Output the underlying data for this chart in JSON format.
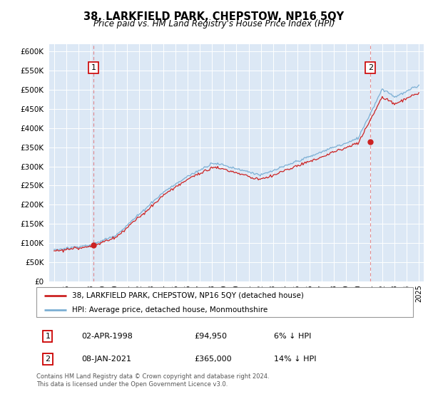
{
  "title": "38, LARKFIELD PARK, CHEPSTOW, NP16 5QY",
  "subtitle": "Price paid vs. HM Land Registry's House Price Index (HPI)",
  "legend_line1": "38, LARKFIELD PARK, CHEPSTOW, NP16 5QY (detached house)",
  "legend_line2": "HPI: Average price, detached house, Monmouthshire",
  "annotation1_date": "02-APR-1998",
  "annotation1_price": "£94,950",
  "annotation1_note": "6% ↓ HPI",
  "annotation2_date": "08-JAN-2021",
  "annotation2_price": "£365,000",
  "annotation2_note": "14% ↓ HPI",
  "footer": "Contains HM Land Registry data © Crown copyright and database right 2024.\nThis data is licensed under the Open Government Licence v3.0.",
  "hpi_color": "#7bafd4",
  "price_color": "#cc2222",
  "vline_color": "#dd4444",
  "bg_color": "#dce8f5",
  "ylim": [
    0,
    620000
  ],
  "yticks": [
    0,
    50000,
    100000,
    150000,
    200000,
    250000,
    300000,
    350000,
    400000,
    450000,
    500000,
    550000,
    600000
  ],
  "sale1_x": 1998.25,
  "sale1_y": 94950,
  "sale2_x": 2021.02,
  "sale2_y": 365000,
  "xlim_left": 1994.6,
  "xlim_right": 2025.4
}
